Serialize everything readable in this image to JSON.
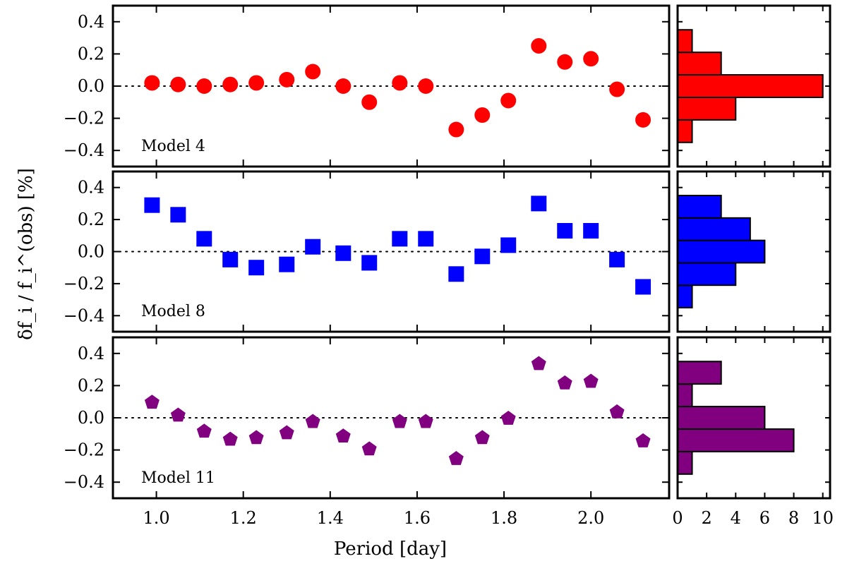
{
  "chart_data": {
    "type": "scatter",
    "xlabel": "Period [day]",
    "ylabel": "δf_i / f_i^(obs) [%]",
    "xlim": [
      0.9,
      2.18
    ],
    "ylim": [
      -0.5,
      0.5
    ],
    "x_ticks": [
      "1.0",
      "1.2",
      "1.4",
      "1.6",
      "1.8",
      "2.0"
    ],
    "y_ticks": [
      "0.4",
      "0.2",
      "0.0",
      "−0.2",
      "−0.4"
    ],
    "hist_xlim": [
      0,
      10.5
    ],
    "hist_x_ticks": [
      "0",
      "2",
      "4",
      "6",
      "8",
      "10"
    ],
    "reference_line": 0.0,
    "x": [
      0.99,
      1.05,
      1.11,
      1.17,
      1.23,
      1.3,
      1.36,
      1.43,
      1.49,
      1.56,
      1.62,
      1.69,
      1.75,
      1.81,
      1.88,
      1.94,
      2.0,
      2.06,
      2.12
    ],
    "panels": [
      {
        "label": "Model 4",
        "marker": "circle",
        "color": "#ff0000",
        "y": [
          0.02,
          0.01,
          0.0,
          0.01,
          0.02,
          0.04,
          0.09,
          0.0,
          -0.1,
          0.02,
          0.0,
          -0.27,
          -0.18,
          -0.09,
          0.25,
          0.15,
          0.17,
          -0.02,
          -0.21
        ],
        "histogram": {
          "bins": [
            [
              -0.35,
              -0.21
            ],
            [
              -0.21,
              -0.07
            ],
            [
              -0.07,
              0.07
            ],
            [
              0.07,
              0.21
            ],
            [
              0.21,
              0.35
            ]
          ],
          "counts": [
            1,
            4,
            10,
            3,
            1
          ]
        }
      },
      {
        "label": "Model 8",
        "marker": "square",
        "color": "#0000ff",
        "y": [
          0.29,
          0.23,
          0.08,
          -0.05,
          -0.1,
          -0.08,
          0.03,
          -0.01,
          -0.07,
          0.08,
          0.08,
          -0.14,
          -0.03,
          0.04,
          0.3,
          0.13,
          0.13,
          -0.05,
          -0.22
        ],
        "histogram": {
          "bins": [
            [
              -0.35,
              -0.21
            ],
            [
              -0.21,
              -0.07
            ],
            [
              -0.07,
              0.07
            ],
            [
              0.07,
              0.21
            ],
            [
              0.21,
              0.35
            ]
          ],
          "counts": [
            1,
            4,
            6,
            5,
            3
          ]
        }
      },
      {
        "label": "Model 11",
        "marker": "pentagon",
        "color": "#800080",
        "y": [
          0.1,
          0.02,
          -0.08,
          -0.13,
          -0.12,
          -0.09,
          -0.02,
          -0.11,
          -0.19,
          -0.02,
          -0.02,
          -0.25,
          -0.12,
          0.0,
          0.34,
          0.22,
          0.23,
          0.04,
          -0.14
        ],
        "histogram": {
          "bins": [
            [
              -0.35,
              -0.21
            ],
            [
              -0.21,
              -0.07
            ],
            [
              -0.07,
              0.07
            ],
            [
              0.07,
              0.21
            ],
            [
              0.21,
              0.35
            ]
          ],
          "counts": [
            1,
            8,
            6,
            1,
            3
          ]
        }
      }
    ]
  }
}
